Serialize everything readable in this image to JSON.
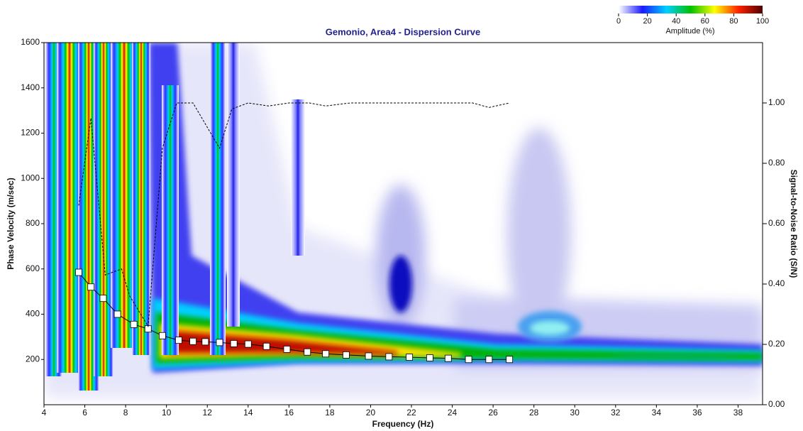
{
  "chart_data": {
    "type": "line",
    "title": "Gemonio, Area4 - Dispersion Curve",
    "x_label": "Frequency (Hz)",
    "y_label": "Phase Velocity (m/sec)",
    "y2_label": "Signal-to-Noise Ratio (S/N)",
    "xlim": [
      4,
      39.2
    ],
    "xticks": [
      4,
      6,
      8,
      10,
      12,
      14,
      16,
      18,
      20,
      22,
      24,
      26,
      28,
      30,
      32,
      34,
      36,
      38
    ],
    "ylim": [
      0,
      1600
    ],
    "yticks": [
      200,
      400,
      600,
      800,
      1000,
      1200,
      1400,
      1600
    ],
    "y2lim": [
      0,
      1.2
    ],
    "y2ticks": [
      {
        "value": 0,
        "label": "0.00"
      },
      {
        "value": 0.2,
        "label": "0.20"
      },
      {
        "value": 0.4,
        "label": "0.40"
      },
      {
        "value": 0.6,
        "label": "0.60"
      },
      {
        "value": 0.8,
        "label": "0.80"
      },
      {
        "value": 1,
        "label": "1.00"
      }
    ],
    "colorbar": {
      "label": "Amplitude (%)",
      "clim": [
        0,
        100
      ],
      "ticks": [
        0,
        20,
        40,
        60,
        80,
        100
      ],
      "colors": [
        "#ffffff",
        "#1a1aff",
        "#00d0ff",
        "#00c000",
        "#ffff00",
        "#ff2000",
        "#500000"
      ]
    },
    "series": [
      {
        "color": "#000000",
        "marker": "square",
        "x": [
          5.7,
          6.3,
          6.9,
          7.6,
          8.4,
          9.1,
          9.8,
          10.6,
          11.3,
          11.9,
          12.6,
          13.3,
          14.0,
          14.9,
          15.9,
          16.9,
          17.8,
          18.8,
          19.9,
          20.9,
          21.9,
          22.9,
          23.8,
          24.8,
          25.8,
          26.8
        ],
        "values": [
          585,
          520,
          470,
          400,
          355,
          335,
          305,
          285,
          280,
          278,
          275,
          270,
          268,
          258,
          245,
          233,
          225,
          220,
          215,
          212,
          210,
          207,
          205,
          200,
          200,
          200
        ]
      },
      {
        "color": "#000000",
        "dash": true,
        "axis": "y2",
        "x": [
          5.7,
          6.3,
          7.0,
          7.8,
          8.2,
          9.1,
          9.8,
          10.5,
          11.3,
          12.6,
          13.2,
          14.0,
          15.0,
          16.0,
          17.0,
          17.8,
          19.0,
          25.0,
          25.8,
          26.8
        ],
        "values": [
          0.66,
          0.95,
          0.43,
          0.45,
          0.36,
          0.26,
          0.85,
          1.0,
          1.0,
          0.85,
          0.98,
          1.0,
          0.99,
          1.0,
          1.0,
          0.99,
          1.0,
          1.0,
          0.985,
          1.0
        ]
      }
    ]
  }
}
